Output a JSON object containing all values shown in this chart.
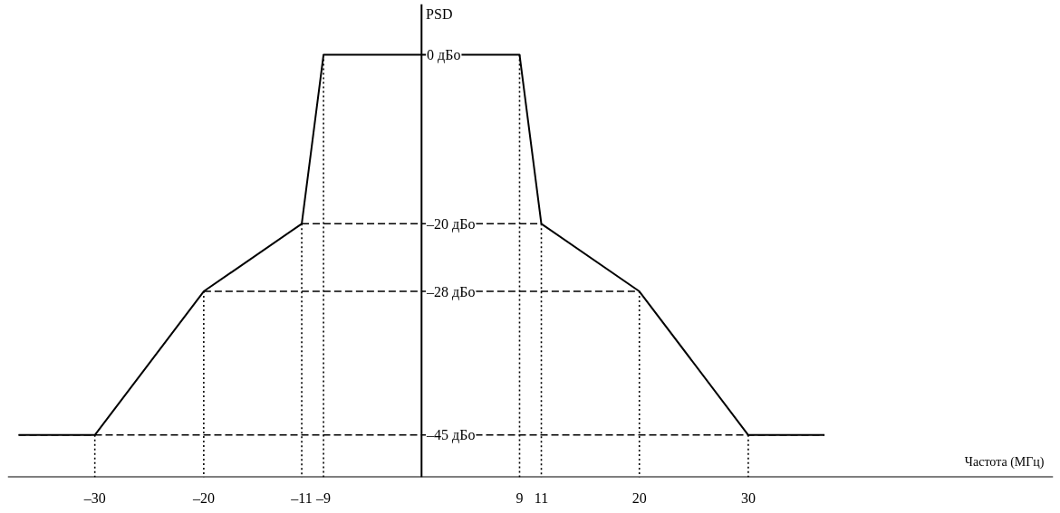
{
  "chart_data": {
    "type": "line",
    "xlabel": "Частота (МГц)",
    "ylabel": "PSD",
    "xlim": [
      -38,
      58
    ],
    "ylim": [
      -50,
      6
    ],
    "xticks": [
      {
        "value": -30,
        "label": "–30"
      },
      {
        "value": -20,
        "label": "–20"
      },
      {
        "value": -11,
        "label": "–11"
      },
      {
        "value": -9,
        "label": "–9"
      },
      {
        "value": 9,
        "label": "9"
      },
      {
        "value": 11,
        "label": "11"
      },
      {
        "value": 20,
        "label": "20"
      },
      {
        "value": 30,
        "label": "30"
      }
    ],
    "yticks": [
      {
        "value": 0,
        "label": "0 дБо"
      },
      {
        "value": -20,
        "label": "–20 дБо"
      },
      {
        "value": -28,
        "label": "–28 дБо"
      },
      {
        "value": -45,
        "label": "–45 дБо"
      }
    ],
    "grid": false,
    "marker": "none",
    "series": [
      {
        "color": "#000000",
        "line_style": "solid",
        "x": [
          -37,
          -30,
          -20,
          -11,
          -9,
          9,
          11,
          20,
          30,
          37
        ],
        "values": [
          -45,
          -45,
          -28,
          -20,
          0,
          0,
          -20,
          -28,
          -45,
          -45
        ]
      },
      {
        "color": "#000000",
        "line_style": "dashed",
        "x": [
          -11,
          11
        ],
        "values": [
          -20,
          -20
        ]
      },
      {
        "color": "#000000",
        "line_style": "dashed",
        "x": [
          -20,
          20
        ],
        "values": [
          -28,
          -28
        ]
      },
      {
        "color": "#000000",
        "line_style": "dashed",
        "x": [
          -37,
          37
        ],
        "values": [
          -45,
          -45
        ]
      },
      {
        "color": "#000000",
        "line_style": "dotted",
        "x": [
          -30,
          -30
        ],
        "values": [
          -45,
          -50
        ]
      },
      {
        "color": "#000000",
        "line_style": "dotted",
        "x": [
          -20,
          -20
        ],
        "values": [
          -28,
          -50
        ]
      },
      {
        "color": "#000000",
        "line_style": "dotted",
        "x": [
          -11,
          -11
        ],
        "values": [
          -20,
          -50
        ]
      },
      {
        "color": "#000000",
        "line_style": "dotted",
        "x": [
          -9,
          -9
        ],
        "values": [
          0,
          -50
        ]
      },
      {
        "color": "#000000",
        "line_style": "dotted",
        "x": [
          9,
          9
        ],
        "values": [
          0,
          -50
        ]
      },
      {
        "color": "#000000",
        "line_style": "dotted",
        "x": [
          11,
          11
        ],
        "values": [
          -20,
          -50
        ]
      },
      {
        "color": "#000000",
        "line_style": "dotted",
        "x": [
          20,
          20
        ],
        "values": [
          -28,
          -50
        ]
      },
      {
        "color": "#000000",
        "line_style": "dotted",
        "x": [
          30,
          30
        ],
        "values": [
          -45,
          -50
        ]
      }
    ]
  }
}
